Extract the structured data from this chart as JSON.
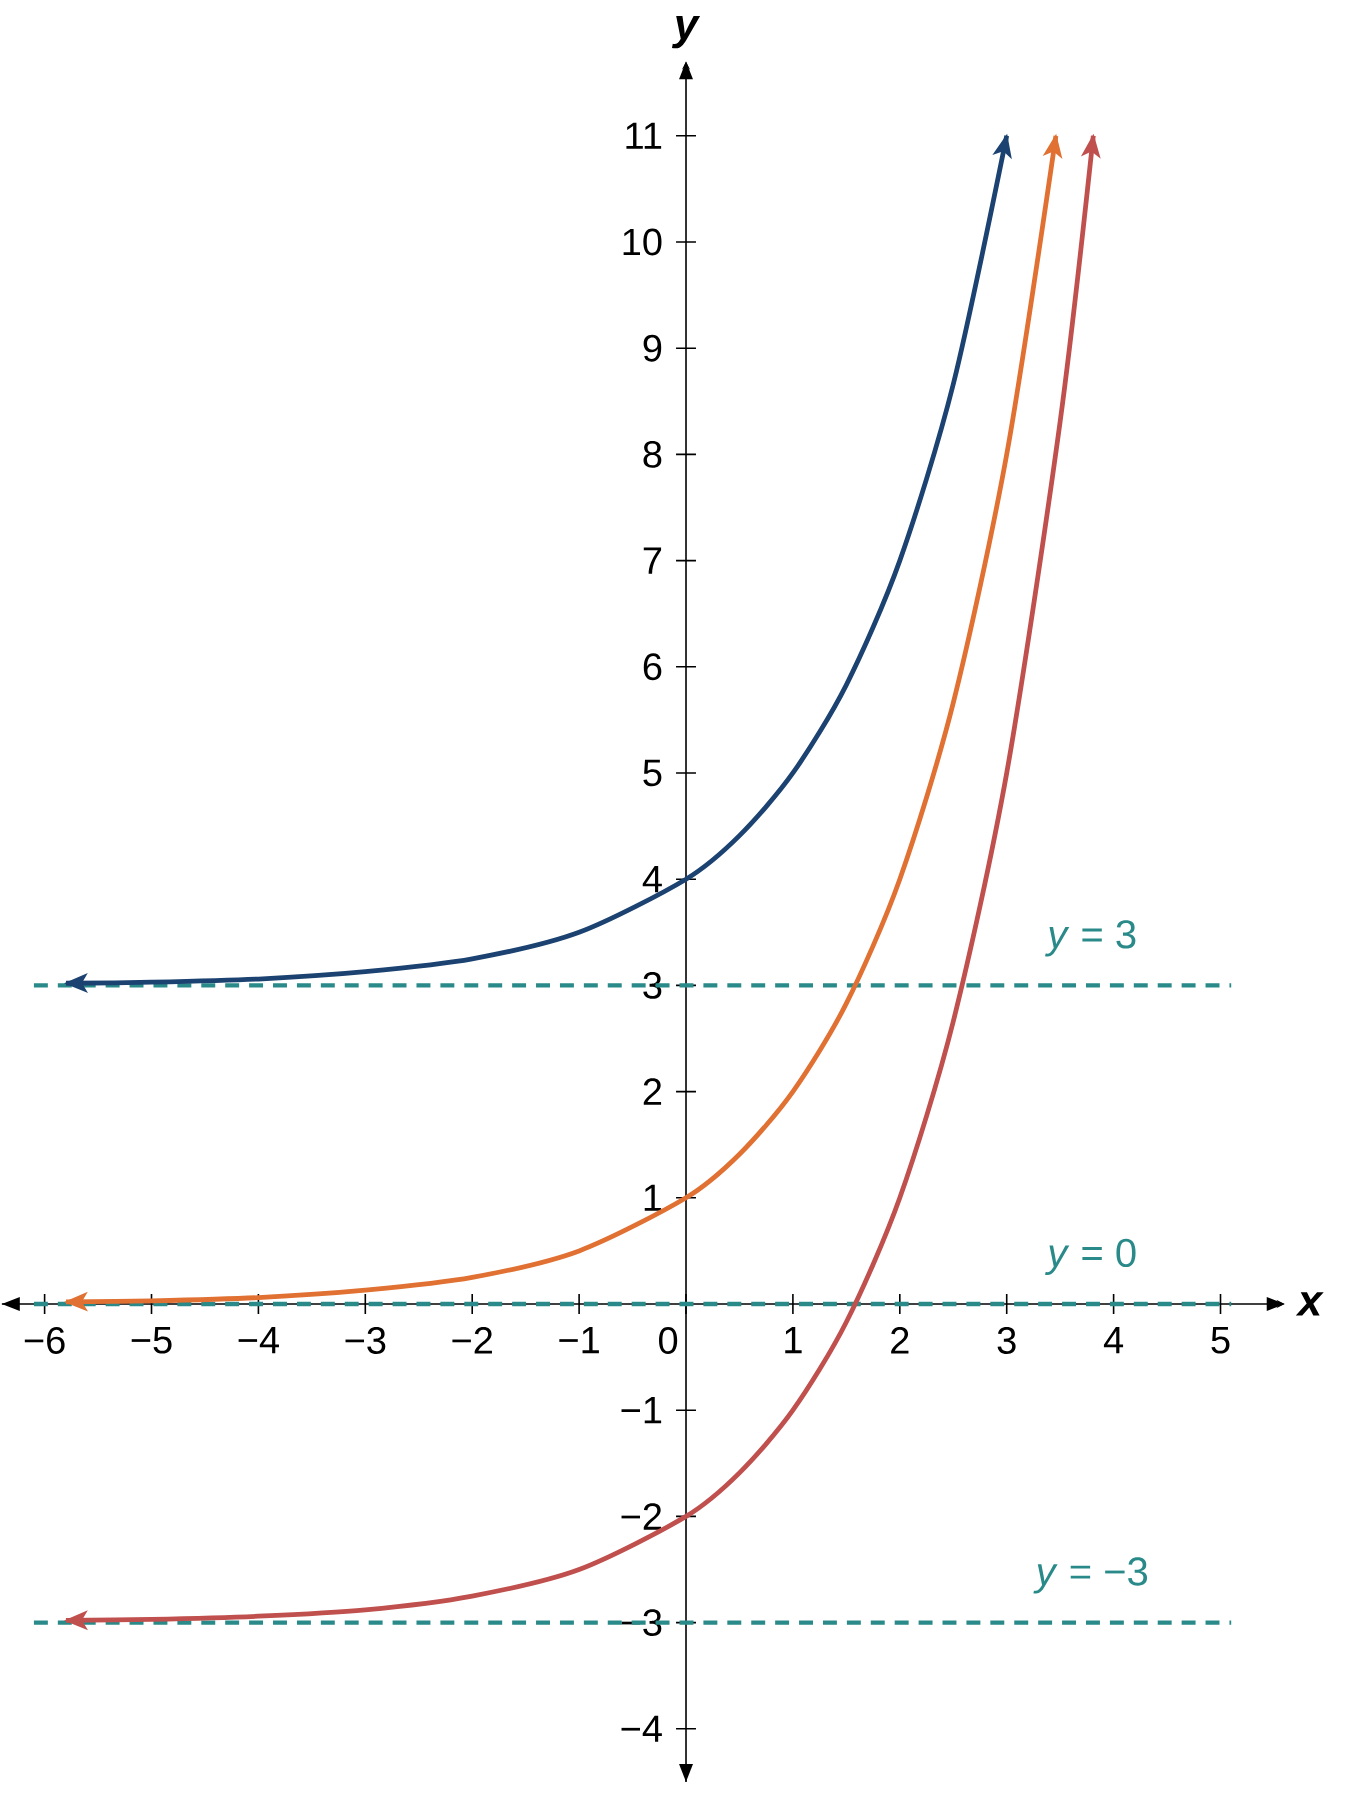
{
  "chart_data": {
    "type": "line",
    "xlabel": "x",
    "ylabel": "y",
    "xlim": [
      -6.4,
      5.6
    ],
    "ylim": [
      -4.5,
      11.7
    ],
    "xticks": [
      {
        "value": -6,
        "label": "−6"
      },
      {
        "value": -5,
        "label": "−5"
      },
      {
        "value": -4,
        "label": "−4"
      },
      {
        "value": -3,
        "label": "−3"
      },
      {
        "value": -2,
        "label": "−2"
      },
      {
        "value": -1,
        "label": "−1"
      },
      0,
      1,
      2,
      3,
      4,
      5
    ],
    "yticks": [
      {
        "value": -4,
        "label": "−4"
      },
      {
        "value": -3,
        "label": "−3"
      },
      {
        "value": -2,
        "label": "−2"
      },
      {
        "value": -1,
        "label": "−1"
      },
      1,
      2,
      3,
      4,
      5,
      6,
      7,
      8,
      9,
      10,
      11
    ],
    "series": [
      {
        "color": "#1b4270",
        "x": [
          -5.8,
          -5,
          -4,
          -3,
          -2,
          -1,
          0,
          0.5,
          1,
          1.5,
          2,
          2.5,
          3
        ],
        "values": [
          3.02,
          3.03,
          3.06,
          3.13,
          3.25,
          3.5,
          4,
          4.41,
          5,
          5.83,
          7,
          8.66,
          11
        ]
      },
      {
        "color": "#e07132",
        "x": [
          -5.8,
          -5,
          -4,
          -3,
          -2,
          -1,
          0,
          0.5,
          1,
          1.5,
          2,
          2.5,
          3,
          3.46
        ],
        "values": [
          0.02,
          0.03,
          0.06,
          0.13,
          0.25,
          0.5,
          1,
          1.41,
          2,
          2.83,
          4,
          5.66,
          8,
          11
        ]
      },
      {
        "color": "#c0504d",
        "x": [
          -5.8,
          -5,
          -4,
          -3,
          -2,
          -1,
          0,
          0.5,
          1,
          1.5,
          2,
          2.5,
          3,
          3.5,
          3.81
        ],
        "values": [
          -2.98,
          -2.97,
          -2.94,
          -2.88,
          -2.75,
          -2.5,
          -2,
          -1.59,
          -1,
          -0.17,
          1,
          2.66,
          5,
          8.31,
          11
        ]
      }
    ],
    "ref_lines": [
      {
        "axis": "y",
        "value": 3,
        "label": "*y* = 3",
        "color": "#2a8a8a",
        "line_style": "dashed"
      },
      {
        "axis": "y",
        "value": 0,
        "label": "*y* = 0",
        "color": "#2a8a8a",
        "line_style": "dashed"
      },
      {
        "axis": "y",
        "value": -3,
        "label": "*y* = −3",
        "color": "#2a8a8a",
        "line_style": "dashed"
      }
    ]
  }
}
